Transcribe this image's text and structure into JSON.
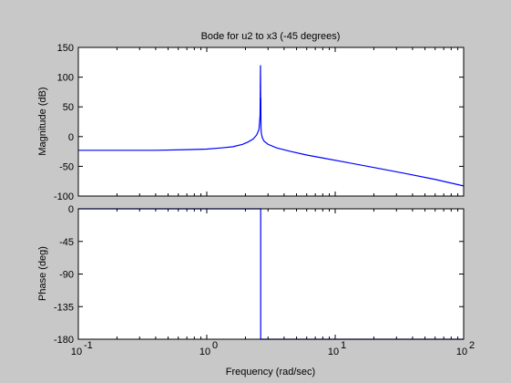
{
  "chart_data": [
    {
      "type": "line",
      "title": "Bode for u2 to x3 (-45 degrees)",
      "xlabel": "",
      "ylabel": "Magnitude (dB)",
      "xscale": "log",
      "xlim": [
        0.1,
        100
      ],
      "ylim": [
        -100,
        150
      ],
      "xticks": [
        0.1,
        1,
        10,
        100
      ],
      "yticks": [
        -100,
        -50,
        0,
        50,
        100,
        150
      ],
      "ytick_labels": [
        "-100",
        "-50",
        "0",
        "50",
        "100",
        "150"
      ],
      "grid": false,
      "series": [
        {
          "color": "#0000ff",
          "x": [
            0.1,
            0.2,
            0.4,
            0.7,
            1.0,
            1.3,
            1.6,
            1.9,
            2.1,
            2.3,
            2.45,
            2.55,
            2.6,
            2.62,
            2.63,
            2.635,
            2.64,
            2.645,
            2.65,
            2.66,
            2.68,
            2.72,
            2.8,
            3.0,
            3.5,
            4.5,
            6,
            8,
            12,
            20,
            35,
            60,
            100
          ],
          "y": [
            -23,
            -23,
            -23,
            -22,
            -21,
            -19,
            -17,
            -13,
            -9,
            -4,
            3,
            12,
            35,
            120,
            40,
            65,
            30,
            13,
            10,
            6,
            2,
            -3,
            -8,
            -13,
            -19,
            -25,
            -31,
            -36,
            -43,
            -52,
            -62,
            -72,
            -83
          ]
        }
      ]
    },
    {
      "type": "line",
      "title": "",
      "xlabel": "Frequency  (rad/sec)",
      "ylabel": "Phase (deg)",
      "xscale": "log",
      "xlim": [
        0.1,
        100
      ],
      "ylim": [
        -180,
        0
      ],
      "xticks": [
        0.1,
        1,
        10,
        100
      ],
      "xtick_bases": [
        "10",
        "10",
        "10",
        "10"
      ],
      "xtick_exps": [
        "-1",
        "0",
        "1",
        "2"
      ],
      "yticks": [
        -180,
        -135,
        -90,
        -45,
        0
      ],
      "ytick_labels": [
        "-180",
        "-135",
        "-90",
        "-45",
        "0"
      ],
      "grid": false,
      "series": [
        {
          "color": "#0000ff",
          "x": [
            0.1,
            2.63,
            2.63,
            100
          ],
          "y": [
            0,
            0,
            -180,
            -180
          ]
        }
      ]
    }
  ]
}
